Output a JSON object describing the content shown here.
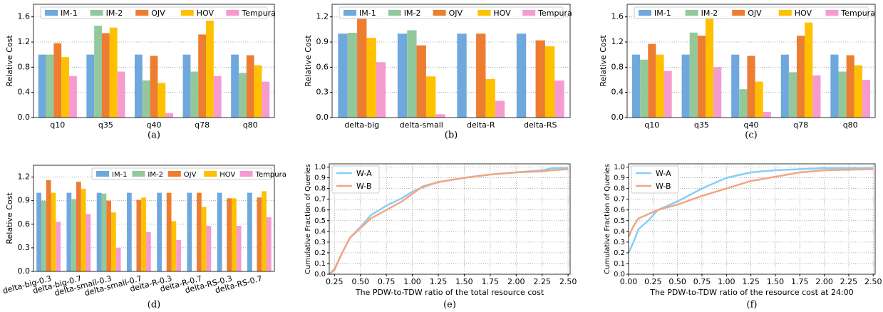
{
  "chart_data": [
    {
      "type": "bar",
      "caption": "(a)",
      "ylabel": "Relative Cost",
      "legend": "upper center",
      "grid": true,
      "categories": [
        "q10",
        "q35",
        "q40",
        "q78",
        "q80"
      ],
      "ylim": [
        0,
        1.8
      ],
      "yticks": [
        {
          "value": 0,
          "label": "0.0"
        },
        0.4,
        0.8,
        1.2,
        1.6
      ],
      "series": [
        {
          "name": "IM-1",
          "color": "#6fa8dc",
          "values": [
            1,
            1,
            1,
            1,
            1
          ]
        },
        {
          "name": "IM-2",
          "color": "#93c99a",
          "values": [
            1.0,
            1.46,
            0.59,
            0.73,
            0.71
          ]
        },
        {
          "name": "OJV",
          "color": "#ed7d31",
          "values": [
            1.18,
            1.34,
            0.98,
            1.32,
            0.99
          ]
        },
        {
          "name": "HOV",
          "color": "#ffc000",
          "values": [
            0.96,
            1.43,
            0.55,
            1.54,
            0.83
          ]
        },
        {
          "name": "Tempura",
          "color": "#f59bd0",
          "values": [
            0.66,
            0.73,
            0.07,
            0.66,
            0.57
          ]
        }
      ]
    },
    {
      "type": "bar",
      "caption": "(b)",
      "ylabel": "Relative Cost",
      "legend": "upper center",
      "grid": true,
      "categories": [
        "delta-big",
        "delta-small",
        "delta-R",
        "delta-RS"
      ],
      "ylim": [
        0,
        1.35
      ],
      "yticks": [
        {
          "value": 0,
          "label": "0.0"
        },
        0.3,
        0.6,
        0.9,
        1.2
      ],
      "series": [
        {
          "name": "IM-1",
          "color": "#6fa8dc",
          "values": [
            1,
            1,
            1,
            1
          ]
        },
        {
          "name": "IM-2",
          "color": "#93c99a",
          "values": [
            1.01,
            1.04,
            null,
            null
          ]
        },
        {
          "name": "OJV",
          "color": "#ed7d31",
          "values": [
            1.18,
            0.86,
            1.0,
            0.92
          ]
        },
        {
          "name": "HOV",
          "color": "#ffc000",
          "values": [
            0.95,
            0.49,
            0.46,
            0.85
          ]
        },
        {
          "name": "Tempura",
          "color": "#f59bd0",
          "values": [
            0.66,
            0.04,
            0.2,
            0.44
          ]
        }
      ]
    },
    {
      "type": "bar",
      "caption": "(c)",
      "ylabel": "Relative Cost",
      "legend": "upper center",
      "grid": true,
      "categories": [
        "q10",
        "q35",
        "q40",
        "q78",
        "q80"
      ],
      "ylim": [
        0,
        1.8
      ],
      "yticks": [
        {
          "value": 0,
          "label": "0.0"
        },
        0.4,
        0.8,
        1.2,
        1.6
      ],
      "series": [
        {
          "name": "IM-1",
          "color": "#6fa8dc",
          "values": [
            1,
            1,
            1,
            1,
            1
          ]
        },
        {
          "name": "IM-2",
          "color": "#93c99a",
          "values": [
            0.92,
            1.35,
            0.45,
            0.72,
            0.73
          ]
        },
        {
          "name": "OJV",
          "color": "#ed7d31",
          "values": [
            1.17,
            1.3,
            0.98,
            1.3,
            0.99
          ]
        },
        {
          "name": "HOV",
          "color": "#ffc000",
          "values": [
            1.0,
            1.58,
            0.57,
            1.51,
            0.83
          ]
        },
        {
          "name": "Tempura",
          "color": "#f59bd0",
          "values": [
            0.74,
            0.8,
            0.09,
            0.67,
            0.6
          ]
        }
      ]
    },
    {
      "type": "bar",
      "caption": "(d)",
      "ylabel": "Relative Cost",
      "legend": "upper right",
      "grid": true,
      "categories": [
        "delta-big-0.3",
        "delta-big-0.7",
        "delta-small-0.3",
        "delta-small-0.7",
        "delta-R-0.3",
        "delta-R-0.7",
        "delta-RS-0.3",
        "delta-RS-0.7"
      ],
      "ylim": [
        0,
        1.35
      ],
      "yticks": [
        {
          "value": 0,
          "label": "0.0"
        },
        0.3,
        0.6,
        0.9,
        1.2
      ],
      "series": [
        {
          "name": "IM-1",
          "color": "#6fa8dc",
          "values": [
            1,
            1,
            1,
            1,
            1,
            1,
            1,
            1
          ]
        },
        {
          "name": "IM-2",
          "color": "#93c99a",
          "values": [
            0.9,
            0.92,
            0.99,
            null,
            null,
            null,
            null,
            null
          ]
        },
        {
          "name": "OJV",
          "color": "#ed7d31",
          "values": [
            1.16,
            1.14,
            0.9,
            0.91,
            1.0,
            1.0,
            0.93,
            0.94
          ]
        },
        {
          "name": "HOV",
          "color": "#ffc000",
          "values": [
            1.0,
            1.05,
            0.75,
            0.94,
            0.64,
            0.82,
            0.93,
            1.02
          ]
        },
        {
          "name": "Tempura",
          "color": "#f59bd0",
          "values": [
            0.63,
            0.73,
            0.3,
            0.5,
            0.4,
            0.58,
            0.58,
            0.69
          ]
        }
      ]
    },
    {
      "type": "line",
      "caption": "(e)",
      "ylabel": "Cumulative Fraction of Queries",
      "xlabel": "The PDW-to-TDW ratio of the total resource cost",
      "legend": "upper left",
      "grid": true,
      "x": [
        0.2,
        0.25,
        0.3,
        0.35,
        0.4,
        0.5,
        0.6,
        0.75,
        0.9,
        1.0,
        1.1,
        1.25,
        1.5,
        1.75,
        2.0,
        2.25,
        2.35,
        2.5
      ],
      "xlim": [
        0.2,
        2.52
      ],
      "xticks": [
        0.25,
        {
          "value": 0.5,
          "label": "0.50"
        },
        0.75,
        {
          "value": 1,
          "label": "1.00"
        },
        1.25,
        {
          "value": 1.5,
          "label": "1.50"
        },
        1.75,
        {
          "value": 2,
          "label": "2.00"
        },
        2.25,
        {
          "value": 2.5,
          "label": "2.50"
        }
      ],
      "ylim": [
        0,
        1.03
      ],
      "yticks": [
        {
          "value": 0,
          "label": "0.0"
        },
        0.1,
        0.2,
        0.3,
        0.4,
        0.5,
        0.6,
        0.7,
        0.8,
        0.9,
        {
          "value": 1,
          "label": "1.0"
        }
      ],
      "series": [
        {
          "name": "W-A",
          "color": "#87cefa",
          "values": [
            0,
            0.05,
            0.15,
            0.25,
            0.34,
            0.44,
            0.55,
            0.64,
            0.71,
            0.77,
            0.81,
            0.86,
            0.9,
            0.93,
            0.95,
            0.97,
            0.99,
            0.99
          ]
        },
        {
          "name": "W-B",
          "color": "#f4a582",
          "values": [
            0,
            0.04,
            0.15,
            0.25,
            0.34,
            0.43,
            0.52,
            0.6,
            0.68,
            0.75,
            0.82,
            0.86,
            0.9,
            0.93,
            0.95,
            0.96,
            0.97,
            0.98
          ]
        }
      ]
    },
    {
      "type": "line",
      "caption": "(f)",
      "ylabel": "Cumulative Fraction of Queries",
      "xlabel": "The PDW-to-TDW ratio of the resource cost at 24:00",
      "legend": "upper left",
      "grid": true,
      "x": [
        0,
        0.05,
        0.1,
        0.2,
        0.3,
        0.5,
        0.75,
        1.0,
        1.25,
        1.5,
        1.75,
        2.0,
        2.5
      ],
      "xlim": [
        0,
        2.52
      ],
      "xticks": [
        {
          "value": 0,
          "label": "0.00"
        },
        0.25,
        {
          "value": 0.5,
          "label": "0.50"
        },
        0.75,
        {
          "value": 1,
          "label": "1.00"
        },
        1.25,
        {
          "value": 1.5,
          "label": "1.50"
        },
        1.75,
        {
          "value": 2,
          "label": "2.00"
        },
        2.25,
        {
          "value": 2.5,
          "label": "2.50"
        }
      ],
      "ylim": [
        0,
        1.03
      ],
      "yticks": [
        {
          "value": 0,
          "label": "0.0"
        },
        0.1,
        0.2,
        0.3,
        0.4,
        0.5,
        0.6,
        0.7,
        0.8,
        0.9,
        {
          "value": 1,
          "label": "1.0"
        }
      ],
      "series": [
        {
          "name": "W-A",
          "color": "#87cefa",
          "values": [
            0.2,
            0.3,
            0.42,
            0.5,
            0.6,
            0.68,
            0.8,
            0.9,
            0.95,
            0.97,
            0.98,
            0.99,
            0.99
          ]
        },
        {
          "name": "W-B",
          "color": "#f4a582",
          "values": [
            0.35,
            0.45,
            0.52,
            0.56,
            0.6,
            0.65,
            0.73,
            0.8,
            0.87,
            0.91,
            0.95,
            0.97,
            0.98
          ]
        }
      ]
    }
  ]
}
